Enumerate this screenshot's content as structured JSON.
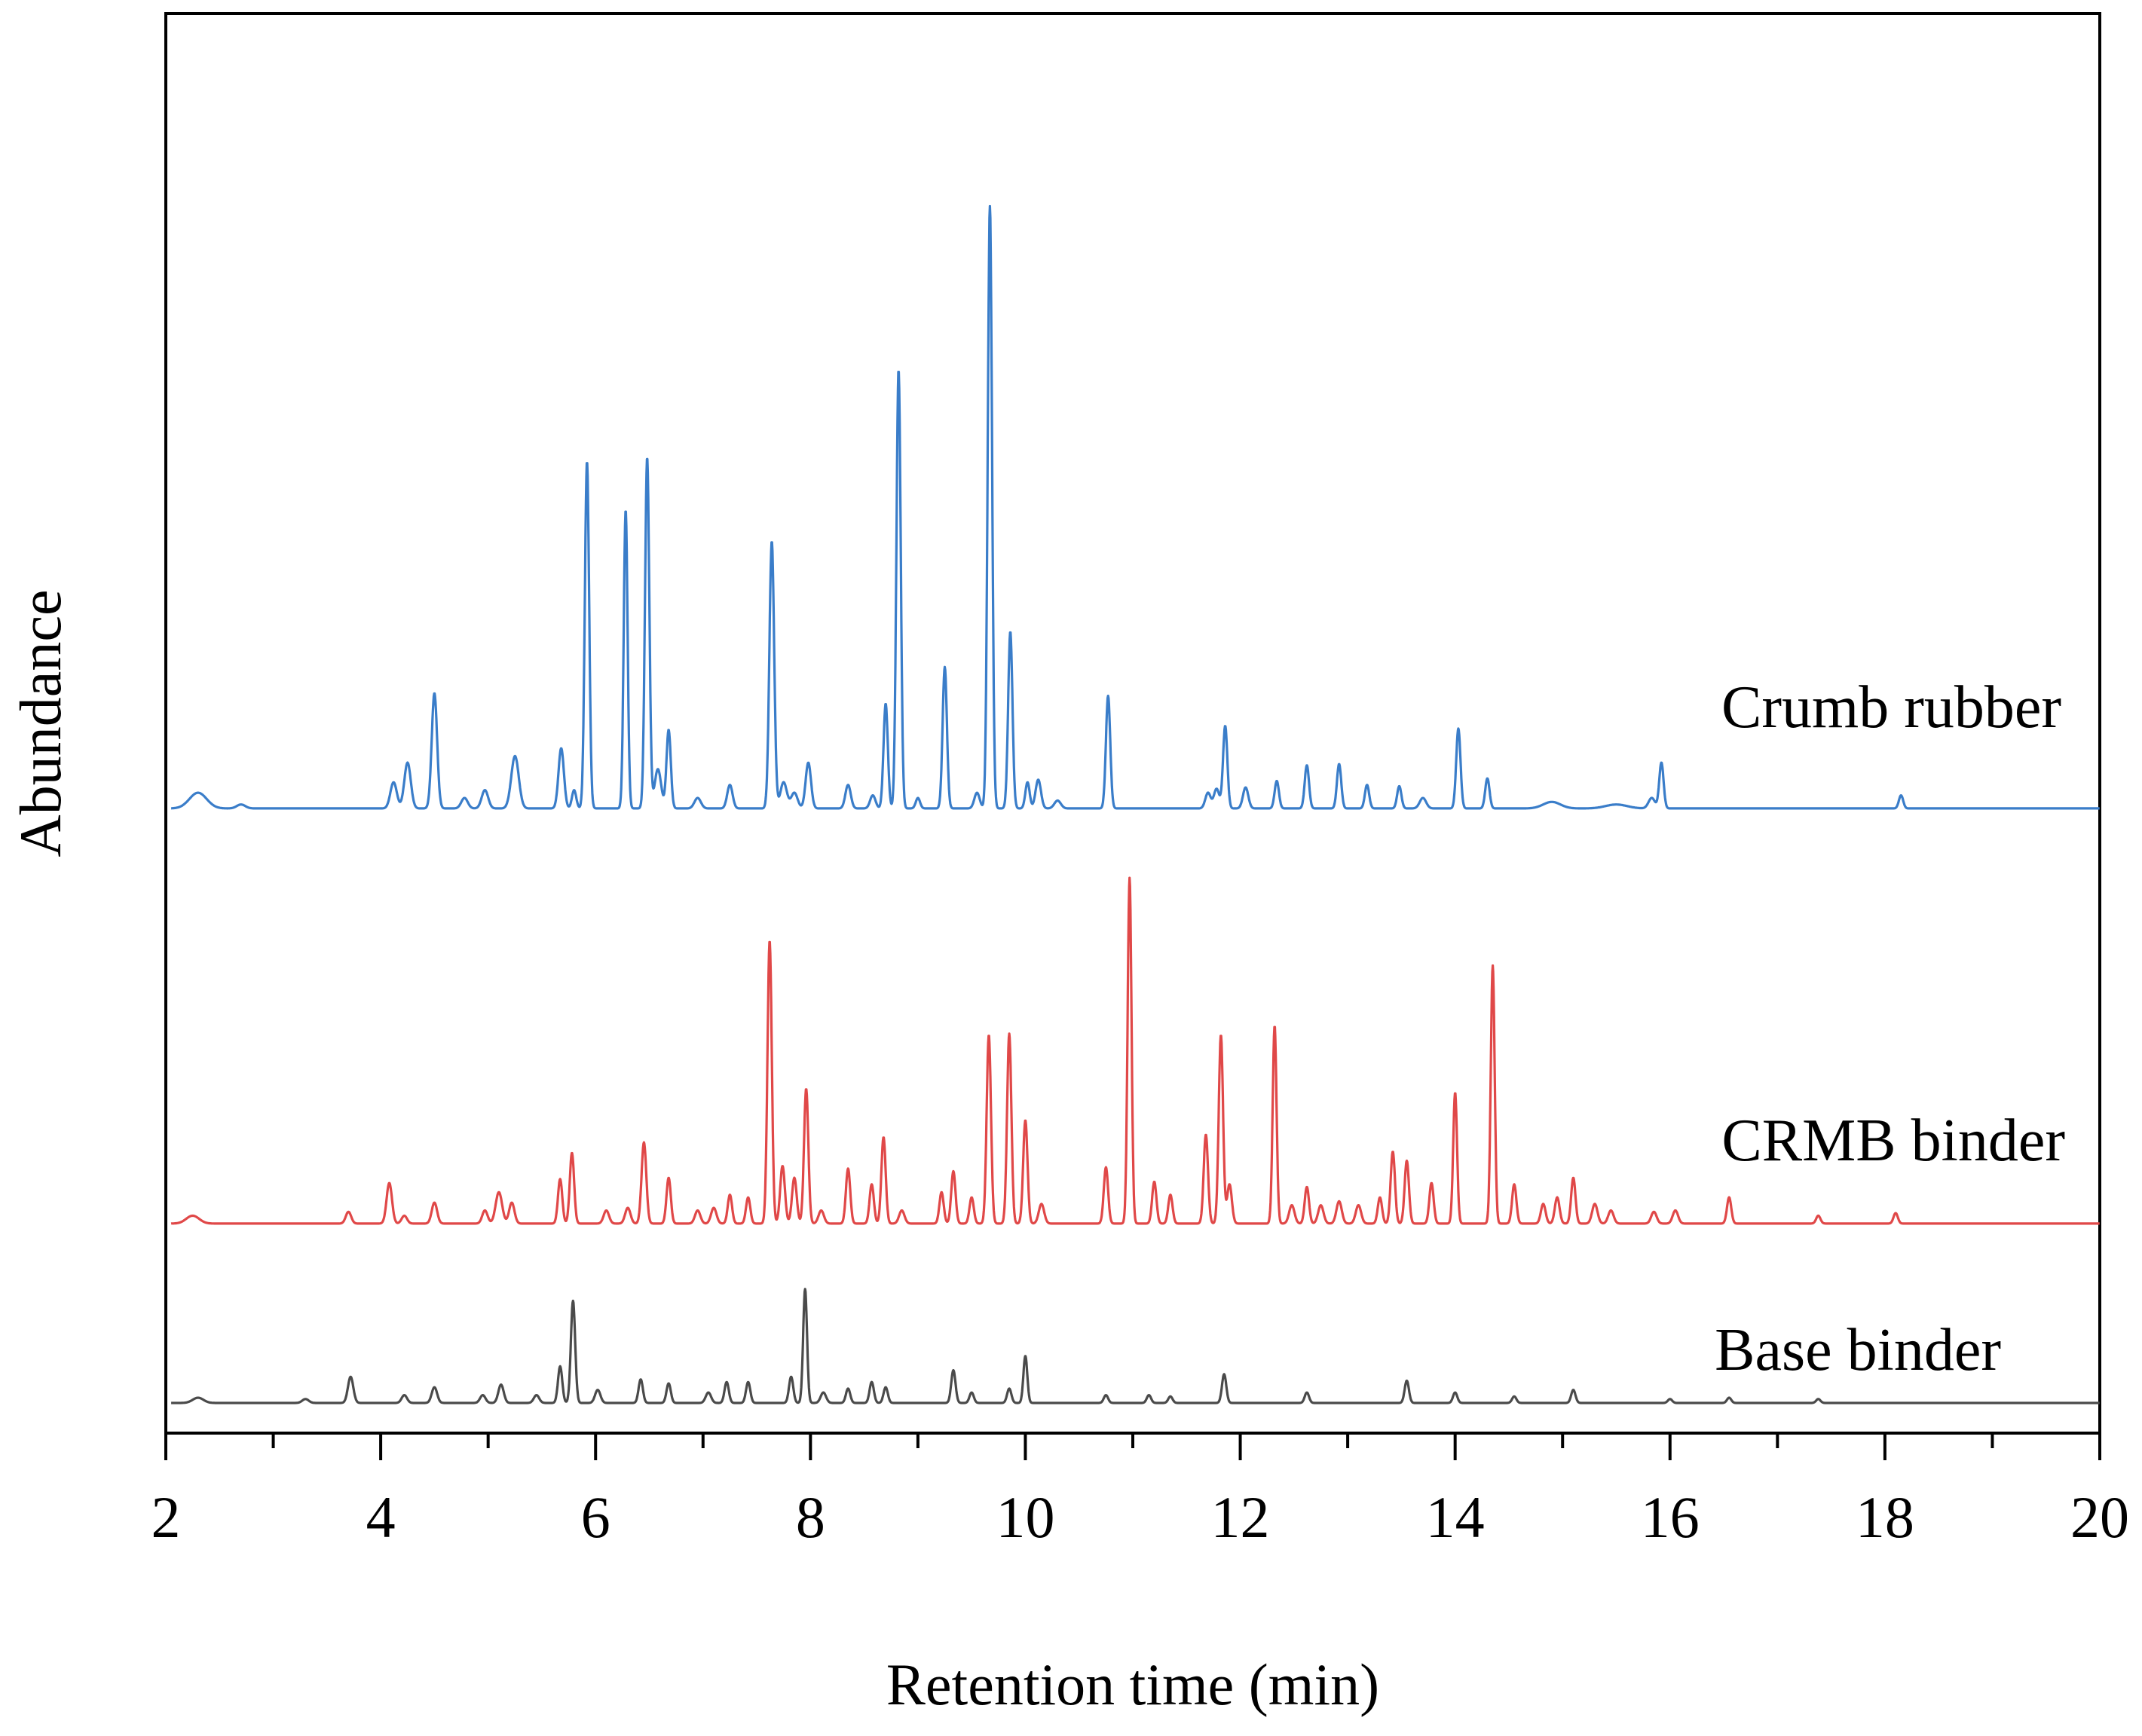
{
  "chart_data": {
    "type": "line",
    "title": "",
    "xlabel": "Retention time (min)",
    "ylabel": "Abundance",
    "xlim": [
      2,
      20
    ],
    "ylim": [
      0,
      100
    ],
    "x_ticks": [
      2,
      4,
      6,
      8,
      10,
      12,
      14,
      16,
      18,
      20
    ],
    "x_tick_labels": [
      "2",
      "4",
      "6",
      "8",
      "10",
      "12",
      "14",
      "16",
      "18",
      "20"
    ],
    "x_minor_ticks": [
      3,
      5,
      7,
      9,
      11,
      13,
      15,
      17,
      19
    ],
    "grid": false,
    "legend": "inline labels at right of each trace",
    "series": [
      {
        "name": "Crumb rubber",
        "color": "#3a7dc9",
        "label_color": "#1f2fd0",
        "baseline": 45.4,
        "peaks": [
          {
            "t": 2.3,
            "h": 1.2,
            "w": 0.08
          },
          {
            "t": 2.7,
            "h": 0.3,
            "w": 0.04
          },
          {
            "t": 4.12,
            "h": 2.0,
            "w": 0.03
          },
          {
            "t": 4.25,
            "h": 3.5,
            "w": 0.03
          },
          {
            "t": 4.5,
            "h": 8.8,
            "w": 0.025
          },
          {
            "t": 4.78,
            "h": 0.8,
            "w": 0.03
          },
          {
            "t": 4.97,
            "h": 1.4,
            "w": 0.03
          },
          {
            "t": 5.25,
            "h": 4.0,
            "w": 0.035
          },
          {
            "t": 5.68,
            "h": 4.6,
            "w": 0.025
          },
          {
            "t": 5.8,
            "h": 1.4,
            "w": 0.02
          },
          {
            "t": 5.92,
            "h": 26.5,
            "w": 0.02
          },
          {
            "t": 6.28,
            "h": 22.8,
            "w": 0.018
          },
          {
            "t": 6.48,
            "h": 26.8,
            "w": 0.02
          },
          {
            "t": 6.58,
            "h": 3.0,
            "w": 0.03
          },
          {
            "t": 6.68,
            "h": 6.0,
            "w": 0.02
          },
          {
            "t": 6.95,
            "h": 0.8,
            "w": 0.03
          },
          {
            "t": 7.25,
            "h": 1.8,
            "w": 0.025
          },
          {
            "t": 7.64,
            "h": 20.4,
            "w": 0.022
          },
          {
            "t": 7.75,
            "h": 2.0,
            "w": 0.03
          },
          {
            "t": 7.85,
            "h": 1.2,
            "w": 0.03
          },
          {
            "t": 7.98,
            "h": 3.5,
            "w": 0.025
          },
          {
            "t": 8.35,
            "h": 1.8,
            "w": 0.025
          },
          {
            "t": 8.58,
            "h": 1.0,
            "w": 0.025
          },
          {
            "t": 8.7,
            "h": 8.0,
            "w": 0.02
          },
          {
            "t": 8.82,
            "h": 33.5,
            "w": 0.02
          },
          {
            "t": 9.0,
            "h": 0.8,
            "w": 0.02
          },
          {
            "t": 9.25,
            "h": 10.8,
            "w": 0.02
          },
          {
            "t": 9.55,
            "h": 1.2,
            "w": 0.025
          },
          {
            "t": 9.67,
            "h": 46.0,
            "w": 0.02
          },
          {
            "t": 9.86,
            "h": 13.5,
            "w": 0.02
          },
          {
            "t": 10.02,
            "h": 2.0,
            "w": 0.02
          },
          {
            "t": 10.12,
            "h": 2.2,
            "w": 0.025
          },
          {
            "t": 10.3,
            "h": 0.6,
            "w": 0.03
          },
          {
            "t": 10.77,
            "h": 8.6,
            "w": 0.02
          },
          {
            "t": 11.7,
            "h": 1.2,
            "w": 0.025
          },
          {
            "t": 11.78,
            "h": 1.5,
            "w": 0.025
          },
          {
            "t": 11.86,
            "h": 6.3,
            "w": 0.02
          },
          {
            "t": 12.05,
            "h": 1.6,
            "w": 0.025
          },
          {
            "t": 12.34,
            "h": 2.1,
            "w": 0.02
          },
          {
            "t": 12.62,
            "h": 3.3,
            "w": 0.02
          },
          {
            "t": 12.92,
            "h": 3.4,
            "w": 0.02
          },
          {
            "t": 13.18,
            "h": 1.8,
            "w": 0.02
          },
          {
            "t": 13.48,
            "h": 1.7,
            "w": 0.02
          },
          {
            "t": 13.7,
            "h": 0.8,
            "w": 0.03
          },
          {
            "t": 14.03,
            "h": 6.1,
            "w": 0.02
          },
          {
            "t": 14.3,
            "h": 2.3,
            "w": 0.02
          },
          {
            "t": 14.9,
            "h": 0.5,
            "w": 0.08
          },
          {
            "t": 15.5,
            "h": 0.3,
            "w": 0.1
          },
          {
            "t": 15.83,
            "h": 0.8,
            "w": 0.03
          },
          {
            "t": 15.92,
            "h": 3.5,
            "w": 0.02
          },
          {
            "t": 18.15,
            "h": 1.0,
            "w": 0.02
          }
        ]
      },
      {
        "name": "CRMB binder",
        "color": "#e04848",
        "label_color": "#e01e1e",
        "baseline": 13.7,
        "peaks": [
          {
            "t": 2.25,
            "h": 0.6,
            "w": 0.06
          },
          {
            "t": 3.7,
            "h": 0.9,
            "w": 0.025
          },
          {
            "t": 4.08,
            "h": 3.1,
            "w": 0.025
          },
          {
            "t": 4.22,
            "h": 0.6,
            "w": 0.025
          },
          {
            "t": 4.5,
            "h": 1.6,
            "w": 0.025
          },
          {
            "t": 4.97,
            "h": 1.0,
            "w": 0.025
          },
          {
            "t": 5.1,
            "h": 2.4,
            "w": 0.03
          },
          {
            "t": 5.22,
            "h": 1.6,
            "w": 0.025
          },
          {
            "t": 5.67,
            "h": 3.4,
            "w": 0.02
          },
          {
            "t": 5.78,
            "h": 5.4,
            "w": 0.02
          },
          {
            "t": 6.1,
            "h": 1.0,
            "w": 0.025
          },
          {
            "t": 6.3,
            "h": 1.2,
            "w": 0.025
          },
          {
            "t": 6.45,
            "h": 6.2,
            "w": 0.022
          },
          {
            "t": 6.68,
            "h": 3.5,
            "w": 0.02
          },
          {
            "t": 6.95,
            "h": 1.0,
            "w": 0.025
          },
          {
            "t": 7.1,
            "h": 1.2,
            "w": 0.025
          },
          {
            "t": 7.25,
            "h": 2.2,
            "w": 0.02
          },
          {
            "t": 7.42,
            "h": 2.0,
            "w": 0.02
          },
          {
            "t": 7.62,
            "h": 21.6,
            "w": 0.02
          },
          {
            "t": 7.74,
            "h": 4.4,
            "w": 0.022
          },
          {
            "t": 7.85,
            "h": 3.5,
            "w": 0.022
          },
          {
            "t": 7.96,
            "h": 10.3,
            "w": 0.02
          },
          {
            "t": 8.1,
            "h": 1.0,
            "w": 0.025
          },
          {
            "t": 8.35,
            "h": 4.2,
            "w": 0.02
          },
          {
            "t": 8.57,
            "h": 3.0,
            "w": 0.02
          },
          {
            "t": 8.68,
            "h": 6.6,
            "w": 0.02
          },
          {
            "t": 8.85,
            "h": 1.0,
            "w": 0.025
          },
          {
            "t": 9.22,
            "h": 2.4,
            "w": 0.02
          },
          {
            "t": 9.33,
            "h": 4.0,
            "w": 0.02
          },
          {
            "t": 9.5,
            "h": 2.0,
            "w": 0.02
          },
          {
            "t": 9.66,
            "h": 14.4,
            "w": 0.02
          },
          {
            "t": 9.85,
            "h": 14.5,
            "w": 0.02
          },
          {
            "t": 10.0,
            "h": 7.9,
            "w": 0.02
          },
          {
            "t": 10.15,
            "h": 1.5,
            "w": 0.025
          },
          {
            "t": 10.75,
            "h": 4.3,
            "w": 0.02
          },
          {
            "t": 10.97,
            "h": 26.4,
            "w": 0.018
          },
          {
            "t": 11.2,
            "h": 3.2,
            "w": 0.02
          },
          {
            "t": 11.35,
            "h": 2.2,
            "w": 0.02
          },
          {
            "t": 11.68,
            "h": 6.8,
            "w": 0.02
          },
          {
            "t": 11.82,
            "h": 14.4,
            "w": 0.02
          },
          {
            "t": 11.9,
            "h": 3.0,
            "w": 0.022
          },
          {
            "t": 12.32,
            "h": 15.1,
            "w": 0.018
          },
          {
            "t": 12.48,
            "h": 1.4,
            "w": 0.025
          },
          {
            "t": 12.62,
            "h": 2.8,
            "w": 0.02
          },
          {
            "t": 12.75,
            "h": 1.4,
            "w": 0.025
          },
          {
            "t": 12.92,
            "h": 1.7,
            "w": 0.025
          },
          {
            "t": 13.1,
            "h": 1.4,
            "w": 0.025
          },
          {
            "t": 13.3,
            "h": 2.0,
            "w": 0.02
          },
          {
            "t": 13.42,
            "h": 5.5,
            "w": 0.02
          },
          {
            "t": 13.55,
            "h": 4.8,
            "w": 0.02
          },
          {
            "t": 13.78,
            "h": 3.1,
            "w": 0.02
          },
          {
            "t": 14.0,
            "h": 10.0,
            "w": 0.018
          },
          {
            "t": 14.35,
            "h": 19.7,
            "w": 0.018
          },
          {
            "t": 14.55,
            "h": 3.0,
            "w": 0.02
          },
          {
            "t": 14.82,
            "h": 1.5,
            "w": 0.022
          },
          {
            "t": 14.95,
            "h": 2.0,
            "w": 0.022
          },
          {
            "t": 15.1,
            "h": 3.5,
            "w": 0.02
          },
          {
            "t": 15.3,
            "h": 1.5,
            "w": 0.025
          },
          {
            "t": 15.45,
            "h": 1.0,
            "w": 0.025
          },
          {
            "t": 15.85,
            "h": 0.9,
            "w": 0.025
          },
          {
            "t": 16.05,
            "h": 1.0,
            "w": 0.025
          },
          {
            "t": 16.55,
            "h": 2.0,
            "w": 0.02
          },
          {
            "t": 17.38,
            "h": 0.6,
            "w": 0.02
          },
          {
            "t": 18.1,
            "h": 0.8,
            "w": 0.02
          }
        ]
      },
      {
        "name": "Base binder",
        "color": "#4a4a4a",
        "label_color": "#000000",
        "baseline": 0,
        "peaks": [
          {
            "t": 2.3,
            "h": 0.4,
            "w": 0.05
          },
          {
            "t": 3.3,
            "h": 0.3,
            "w": 0.03
          },
          {
            "t": 3.72,
            "h": 2.0,
            "w": 0.025
          },
          {
            "t": 4.22,
            "h": 0.6,
            "w": 0.025
          },
          {
            "t": 4.5,
            "h": 1.2,
            "w": 0.025
          },
          {
            "t": 4.95,
            "h": 0.6,
            "w": 0.025
          },
          {
            "t": 5.12,
            "h": 1.4,
            "w": 0.025
          },
          {
            "t": 5.45,
            "h": 0.6,
            "w": 0.025
          },
          {
            "t": 5.67,
            "h": 2.8,
            "w": 0.02
          },
          {
            "t": 5.79,
            "h": 7.8,
            "w": 0.02
          },
          {
            "t": 6.02,
            "h": 1.0,
            "w": 0.025
          },
          {
            "t": 6.42,
            "h": 1.8,
            "w": 0.02
          },
          {
            "t": 6.68,
            "h": 1.5,
            "w": 0.02
          },
          {
            "t": 7.05,
            "h": 0.8,
            "w": 0.025
          },
          {
            "t": 7.22,
            "h": 1.6,
            "w": 0.02
          },
          {
            "t": 7.42,
            "h": 1.6,
            "w": 0.02
          },
          {
            "t": 7.82,
            "h": 2.0,
            "w": 0.02
          },
          {
            "t": 7.95,
            "h": 8.7,
            "w": 0.018
          },
          {
            "t": 8.12,
            "h": 0.8,
            "w": 0.025
          },
          {
            "t": 8.35,
            "h": 1.1,
            "w": 0.02
          },
          {
            "t": 8.57,
            "h": 1.6,
            "w": 0.02
          },
          {
            "t": 8.7,
            "h": 1.2,
            "w": 0.02
          },
          {
            "t": 9.33,
            "h": 2.5,
            "w": 0.02
          },
          {
            "t": 9.5,
            "h": 0.8,
            "w": 0.02
          },
          {
            "t": 9.85,
            "h": 1.1,
            "w": 0.02
          },
          {
            "t": 10.0,
            "h": 3.6,
            "w": 0.018
          },
          {
            "t": 10.75,
            "h": 0.6,
            "w": 0.02
          },
          {
            "t": 11.15,
            "h": 0.6,
            "w": 0.02
          },
          {
            "t": 11.35,
            "h": 0.5,
            "w": 0.02
          },
          {
            "t": 11.85,
            "h": 2.2,
            "w": 0.02
          },
          {
            "t": 12.62,
            "h": 0.8,
            "w": 0.02
          },
          {
            "t": 13.55,
            "h": 1.7,
            "w": 0.02
          },
          {
            "t": 14.0,
            "h": 0.8,
            "w": 0.02
          },
          {
            "t": 14.55,
            "h": 0.5,
            "w": 0.02
          },
          {
            "t": 15.1,
            "h": 1.0,
            "w": 0.02
          },
          {
            "t": 16.0,
            "h": 0.3,
            "w": 0.02
          },
          {
            "t": 16.55,
            "h": 0.4,
            "w": 0.02
          },
          {
            "t": 17.38,
            "h": 0.3,
            "w": 0.02
          }
        ]
      }
    ]
  }
}
